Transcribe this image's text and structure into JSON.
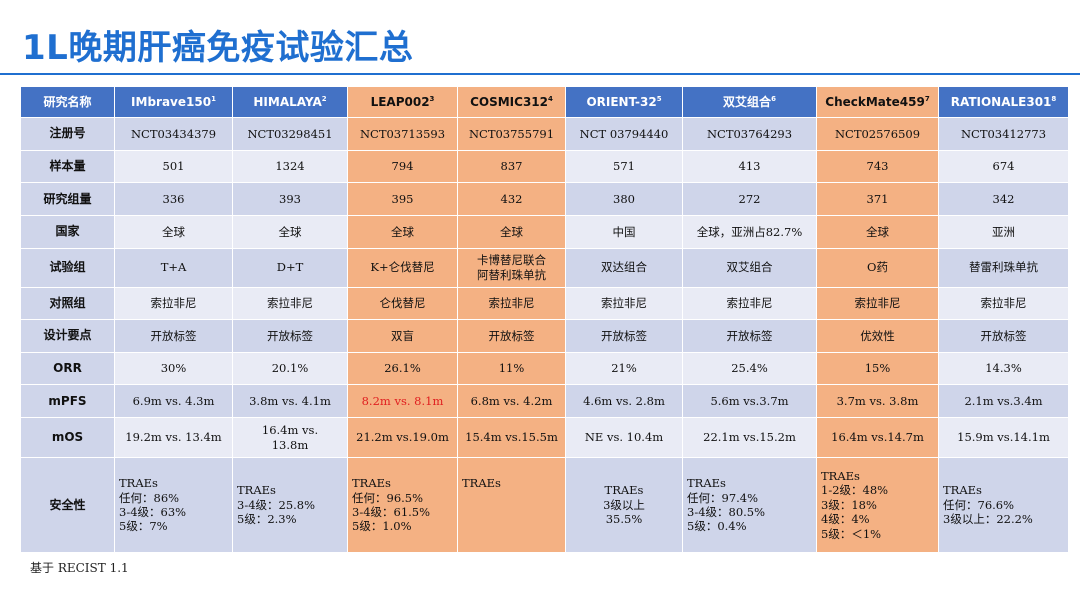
{
  "title": "1L晚期肝癌免疫试验汇总",
  "header": {
    "label": "研究名称",
    "trials": [
      {
        "name": "IMbrave150",
        "ref": "1"
      },
      {
        "name": "HIMALAYA",
        "ref": "2"
      },
      {
        "name": "LEAP002",
        "ref": "3"
      },
      {
        "name": "COSMIC312",
        "ref": "4"
      },
      {
        "name": "ORIENT-32",
        "ref": "5"
      },
      {
        "name": "双艾组合",
        "ref": "6"
      },
      {
        "name": "CheckMate459",
        "ref": "7"
      },
      {
        "name": "RATIONALE301",
        "ref": "8"
      }
    ]
  },
  "rows": [
    {
      "label": "注册号",
      "cells": [
        "NCT03434379",
        "NCT03298451",
        "NCT03713593",
        "NCT03755791",
        "NCT 03794440",
        "NCT03764293",
        "NCT02576509",
        "NCT03412773"
      ]
    },
    {
      "label": "样本量",
      "cells": [
        "501",
        "1324",
        "794",
        "837",
        "571",
        "413",
        "743",
        "674"
      ]
    },
    {
      "label": "研究组量",
      "cells": [
        "336",
        "393",
        "395",
        "432",
        "380",
        "272",
        "371",
        "342"
      ]
    },
    {
      "label": "国家",
      "cells": [
        "全球",
        "全球",
        "全球",
        "全球",
        "中国",
        "全球，亚洲占82.7%",
        "全球",
        "亚洲"
      ]
    },
    {
      "label": "试验组",
      "cells": [
        "T+A",
        "D+T",
        "K+仑伐替尼",
        "卡博替尼联合\n阿替利珠单抗",
        "双达组合",
        "双艾组合",
        "O药",
        "替雷利珠单抗"
      ]
    },
    {
      "label": "对照组",
      "cells": [
        "索拉非尼",
        "索拉非尼",
        "仑伐替尼",
        "索拉非尼",
        "索拉非尼",
        "索拉非尼",
        "索拉非尼",
        "索拉非尼"
      ]
    },
    {
      "label": "设计要点",
      "cells": [
        "开放标签",
        "开放标签",
        "双盲",
        "开放标签",
        "开放标签",
        "开放标签",
        "优效性",
        "开放标签"
      ]
    },
    {
      "label": "ORR",
      "cells": [
        "30%",
        "20.1%",
        "26.1%",
        "11%",
        "21%",
        "25.4%",
        "15%",
        "14.3%"
      ]
    },
    {
      "label": "mPFS",
      "cells": [
        "6.9m vs. 4.3m",
        "3.8m vs. 4.1m",
        "8.2m vs. 8.1m",
        "6.8m vs. 4.2m",
        "4.6m vs. 2.8m",
        "5.6m vs.3.7m",
        "3.7m vs. 3.8m",
        "2.1m vs.3.4m"
      ]
    },
    {
      "label": "mOS",
      "cells": [
        "19.2m vs. 13.4m",
        "16.4m vs.\n13.8m",
        "21.2m vs.19.0m",
        "15.4m vs.15.5m",
        "NE vs. 10.4m",
        "22.1m vs.15.2m",
        "16.4m vs.14.7m",
        "15.9m vs.14.1m"
      ]
    },
    {
      "label": "安全性",
      "cells": [
        "TRAEs\n任何：86%\n3-4级：63%\n5级：7%",
        "TRAEs\n3-4级：25.8%\n5级：2.3%",
        "TRAEs\n任何：96.5%\n3-4级：61.5%\n5级：1.0%",
        "TRAEs",
        "TRAEs\n3级以上\n35.5%",
        "TRAEs\n任何：97.4%\n3-4级：80.5%\n5级：0.4%",
        "TRAEs\n1-2级：48%\n3级：18%\n4级：4%\n5级：＜1%",
        "TRAEs\n任何：76.6%\n3级以上：22.2%"
      ]
    }
  ],
  "highlighted_columns": [
    "LEAP002",
    "COSMIC312",
    "CheckMate459"
  ],
  "highlight_color": "#f4b183",
  "header_color": "#4472c4",
  "title_color": "#1f6fd0",
  "emphasis_color": "#e02020",
  "footnote": "基于 RECIST 1.1"
}
